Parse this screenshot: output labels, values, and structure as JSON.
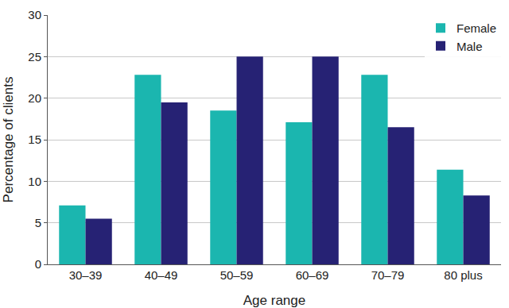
{
  "chart_data": {
    "type": "bar",
    "x_label": "Age range",
    "y_label": "Percentage of clients",
    "categories": [
      "30–39",
      "40–49",
      "50–59",
      "60–69",
      "70–79",
      "80 plus"
    ],
    "series": [
      {
        "name": "Female",
        "color": "#1bb6af",
        "values": [
          7.1,
          22.8,
          18.5,
          17.1,
          22.8,
          11.4
        ]
      },
      {
        "name": "Male",
        "color": "#262274",
        "values": [
          5.5,
          19.5,
          25,
          25,
          16.5,
          8.3
        ]
      }
    ],
    "ylim": [
      0,
      30
    ],
    "yticks": [
      0,
      5,
      10,
      15,
      20,
      25,
      30
    ],
    "grid": true,
    "legend": "top right"
  }
}
